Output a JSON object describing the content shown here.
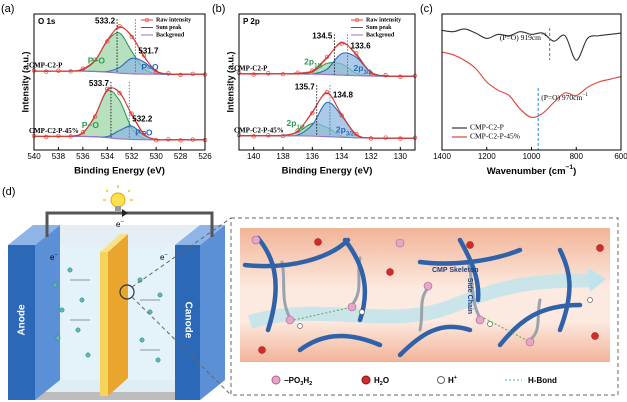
{
  "chart_data": [
    {
      "type": "line",
      "panel": "(a)",
      "title": "O 1s",
      "xlabel": "Binding Energy (eV)",
      "ylabel": "Intensity (a.u.)",
      "x": [
        540,
        539,
        538,
        537,
        536,
        535,
        534,
        533,
        532,
        531,
        530,
        529,
        528,
        527,
        526
      ],
      "xlim": [
        540,
        526
      ],
      "xticks": [
        540,
        538,
        536,
        534,
        532,
        530,
        528,
        526
      ],
      "ylim": [
        0,
        100
      ],
      "legend": [
        {
          "name": "Raw intensity",
          "color": "#e5403a",
          "marker": "open-circle"
        },
        {
          "name": "Sum peak",
          "color": "#c8302c"
        },
        {
          "name": "Backgroud",
          "color": "#9b72c8"
        }
      ],
      "groups": [
        {
          "name": "CMP-C2-P",
          "series": [
            {
              "kind": "component",
              "color": "#2f9a55",
              "fill": "#9fd6a8",
              "center": 533.2,
              "label": "P−O",
              "values": [
                58,
                58,
                58,
                58.1,
                59.2,
                65.7,
                80.2,
                86,
                72.5,
                59.9,
                56.1,
                55.7,
                55.7,
                55.7,
                55.7
              ]
            },
            {
              "kind": "component",
              "color": "#2a6ab8",
              "fill": "#8fb8e0",
              "center": 531.7,
              "label": "P=O",
              "values": [
                58,
                58,
                58,
                58,
                58,
                57.8,
                57.7,
                60.7,
                67.4,
                64.7,
                57.7,
                55.8,
                55.7,
                55.7,
                55.7
              ]
            },
            {
              "kind": "background",
              "color": "#9b72c8",
              "values": [
                58,
                58,
                58,
                58,
                58,
                57.8,
                57.2,
                56.5,
                56,
                55.8,
                55.7,
                55.7,
                55.7,
                55.7,
                55.7
              ]
            },
            {
              "kind": "sum",
              "color": "#c8302c",
              "values": [
                58,
                58,
                58,
                58.1,
                59.2,
                65.7,
                80.7,
                90.2,
                83.9,
                68.8,
                58.1,
                55.8,
                55.7,
                55.7,
                55.7
              ]
            },
            {
              "kind": "raw",
              "color": "#e5403a",
              "marker": "open-circle",
              "values": [
                58.5,
                57.6,
                58.3,
                57.8,
                59.8,
                66.4,
                79.9,
                91.0,
                83.2,
                69.5,
                57.4,
                56.3,
                55.2,
                56.0,
                55.4
              ]
            }
          ]
        },
        {
          "name": "CMP-C2-P-45%",
          "series": [
            {
              "kind": "component",
              "color": "#2f9a55",
              "fill": "#9fd6a8",
              "center": 533.7,
              "label": "P−O",
              "values": [
                10,
                10,
                10,
                10.2,
                12.5,
                25.2,
                43.4,
                36.4,
                16.3,
                8.5,
                7.5,
                7.5,
                7.5,
                7.5,
                7.5
              ]
            },
            {
              "kind": "component",
              "color": "#2a6ab8",
              "fill": "#8fb8e0",
              "center": 532.2,
              "label": "P=O",
              "values": [
                10,
                10,
                10,
                10,
                10,
                9.8,
                9.8,
                14.3,
                17.5,
                10.8,
                7.7,
                7.5,
                7.5,
                7.5,
                7.5
              ]
            },
            {
              "kind": "background",
              "color": "#9b72c8",
              "values": [
                10,
                10,
                10,
                10,
                10,
                9.8,
                9,
                8.2,
                7.8,
                7.6,
                7.5,
                7.5,
                7.5,
                7.5,
                7.5
              ]
            },
            {
              "kind": "sum",
              "color": "#c8302c",
              "values": [
                10,
                10,
                10,
                10.2,
                12.5,
                25.2,
                44.2,
                42.5,
                26,
                11.7,
                7.7,
                7.5,
                7.5,
                7.5,
                7.5
              ]
            },
            {
              "kind": "raw",
              "color": "#e5403a",
              "marker": "open-circle",
              "values": [
                10.4,
                9.6,
                10.3,
                10.0,
                13.1,
                24.6,
                44.9,
                41.8,
                26.7,
                12.2,
                7.2,
                7.9,
                7.1,
                7.7,
                7.3
              ]
            }
          ]
        }
      ]
    },
    {
      "type": "line",
      "panel": "(b)",
      "title": "P 2p",
      "xlabel": "Binding Energy (eV)",
      "ylabel": "Intensity (a.u.)",
      "x": [
        141,
        140,
        139,
        138,
        137,
        136,
        135,
        134,
        133,
        132,
        131,
        130,
        129
      ],
      "xlim": [
        141,
        129
      ],
      "xticks": [
        140,
        138,
        136,
        134,
        132,
        130
      ],
      "ylim": [
        0,
        100
      ],
      "legend": [
        {
          "name": "Raw intensity",
          "color": "#e5403a",
          "marker": "open-circle"
        },
        {
          "name": "Sum peak",
          "color": "#c8302c"
        },
        {
          "name": "Backgroud",
          "color": "#9b72c8"
        }
      ],
      "groups": [
        {
          "name": "CMP-C2-P",
          "series": [
            {
              "kind": "component",
              "color": "#2f9a55",
              "fill": "#9fd6a8",
              "center": 134.5,
              "label": [
                {
                  "text": "2p"
                },
                {
                  "text": "1/2",
                  "pos": "sub"
                }
              ],
              "values": [
                56,
                56,
                56,
                56,
                56.1,
                57.5,
                63.7,
                63.2,
                56.3,
                54.5,
                54.3,
                54.3,
                54.3
              ]
            },
            {
              "kind": "component",
              "color": "#2a6ab8",
              "fill": "#8fb8e0",
              "center": 133.6,
              "label": [
                {
                  "text": "2p"
                },
                {
                  "text": "3/2",
                  "pos": "sub"
                }
              ],
              "values": [
                56,
                56,
                56,
                56,
                56,
                56,
                59.4,
                70.9,
                68.2,
                57,
                54.4,
                54.3,
                54.3
              ]
            },
            {
              "kind": "background",
              "color": "#9b72c8",
              "values": [
                56,
                56,
                56,
                56,
                56,
                55.8,
                55.5,
                55,
                54.6,
                54.4,
                54.3,
                54.3,
                54.3
              ]
            },
            {
              "kind": "sum",
              "color": "#c8302c",
              "values": [
                56,
                56,
                56,
                56,
                56.1,
                57.7,
                67.6,
                79.1,
                69.9,
                57.1,
                54.4,
                54.3,
                54.3
              ]
            },
            {
              "kind": "raw",
              "color": "#e5403a",
              "marker": "open-circle",
              "values": [
                56.6,
                55.5,
                56.4,
                55.8,
                56.9,
                58.4,
                68.5,
                78.2,
                71.0,
                56.4,
                55.0,
                53.8,
                54.6
              ]
            }
          ]
        },
        {
          "name": "CMP-C2-P-45%",
          "series": [
            {
              "kind": "component",
              "color": "#2f9a55",
              "fill": "#9fd6a8",
              "center": 135.7,
              "label": [
                {
                  "text": "2p"
                },
                {
                  "text": "1/2",
                  "pos": "sub"
                }
              ],
              "values": [
                10.5,
                10.5,
                10.5,
                10.7,
                13.1,
                19.5,
                16.6,
                10.3,
                9,
                8.8,
                8.7,
                8.7,
                8.7
              ]
            },
            {
              "kind": "component",
              "color": "#2a6ab8",
              "fill": "#8fb8e0",
              "center": 134.8,
              "label": [
                {
                  "text": "2p"
                },
                {
                  "text": "3/2",
                  "pos": "sub"
                }
              ],
              "values": [
                10.5,
                10.5,
                10.5,
                10.5,
                11,
                18.6,
                35,
                25.1,
                11.1,
                8.9,
                8.7,
                8.7,
                8.7
              ]
            },
            {
              "kind": "background",
              "color": "#9b72c8",
              "values": [
                10.5,
                10.5,
                10.5,
                10.5,
                10.4,
                10.2,
                9.8,
                9.3,
                9,
                8.8,
                8.7,
                8.7,
                8.7
              ]
            },
            {
              "kind": "sum",
              "color": "#c8302c",
              "values": [
                10.5,
                10.5,
                10.5,
                10.7,
                13.7,
                27.9,
                41.8,
                26.1,
                11.1,
                8.9,
                8.7,
                8.7,
                8.7
              ]
            },
            {
              "kind": "raw",
              "color": "#e5403a",
              "marker": "open-circle",
              "values": [
                10.9,
                10.1,
                10.8,
                10.4,
                14.2,
                27.1,
                42.6,
                25.4,
                11.8,
                8.5,
                9.1,
                8.4,
                9.0
              ]
            }
          ]
        }
      ]
    },
    {
      "type": "line",
      "panel": "(c)",
      "xlabel": [
        {
          "text": "Wavenumber (cm"
        },
        {
          "text": "−1",
          "pos": "sup"
        },
        {
          "text": ")"
        }
      ],
      "x": [
        1400,
        1350,
        1300,
        1250,
        1200,
        1150,
        1100,
        1050,
        1000,
        950,
        900,
        850,
        800,
        750,
        700,
        650,
        600
      ],
      "xlim": [
        1400,
        600
      ],
      "xticks": [
        1400,
        1200,
        1000,
        800,
        600
      ],
      "ylim": [
        0,
        100
      ],
      "legend_position": "lower-left",
      "series": [
        {
          "name": "CMP-C2-P",
          "color": "#333333",
          "values": [
            88,
            87,
            89,
            86,
            82,
            85,
            84,
            87,
            85,
            86,
            80,
            84,
            66,
            82,
            84,
            85,
            86
          ]
        },
        {
          "name": "CMP-C2-P-45%",
          "color": "#e5403a",
          "values": [
            72,
            70,
            66,
            60,
            50,
            44,
            40,
            30,
            24,
            27,
            35,
            42,
            40,
            46,
            50,
            52,
            54
          ]
        }
      ],
      "annotations": [
        {
          "x": 919,
          "color": "#3399cc",
          "label": [
            {
              "text": "(P=O) 919cm"
            },
            {
              "text": "−1",
              "pos": "sup"
            }
          ]
        },
        {
          "x": 970,
          "color": "#3399cc",
          "label": [
            {
              "text": "(P=O) 970cm"
            },
            {
              "text": "−1",
              "pos": "sup"
            }
          ]
        }
      ]
    }
  ],
  "diagram": {
    "label": "(d)",
    "electrons": [
      [
        {
          "text": "e"
        },
        {
          "text": "−",
          "pos": "sup"
        }
      ],
      [
        {
          "text": "e"
        },
        {
          "text": "−",
          "pos": "sup"
        }
      ],
      [
        {
          "text": "e"
        },
        {
          "text": "−",
          "pos": "sup"
        }
      ]
    ],
    "anode": "Anode",
    "cathode": "Canode",
    "skeleton": "CMP Skeleton",
    "side_chain": "Side Chain",
    "legend": [
      [
        {
          "text": "−PO"
        },
        {
          "text": "3",
          "pos": "sub"
        },
        {
          "text": "H"
        },
        {
          "text": "2",
          "pos": "sub"
        }
      ],
      [
        {
          "text": "H"
        },
        {
          "text": "2",
          "pos": "sub"
        },
        {
          "text": "O"
        }
      ],
      [
        {
          "text": "H"
        },
        {
          "text": "+",
          "pos": "sup"
        }
      ],
      "H-Bond"
    ]
  }
}
